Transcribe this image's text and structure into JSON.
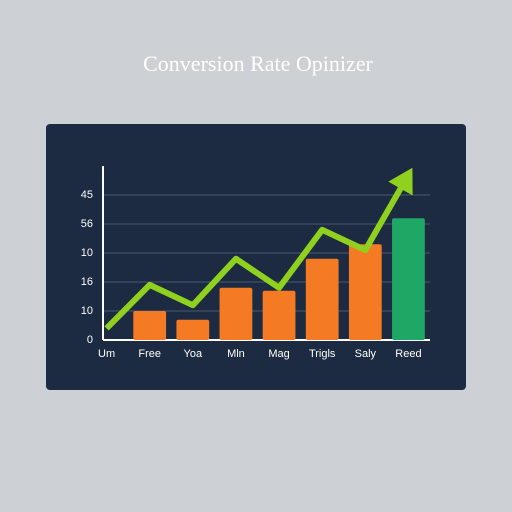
{
  "chart_data": {
    "type": "bar",
    "title": "Conversion Rate Opinizer",
    "categories": [
      "Um",
      "Free",
      "Yoa",
      "Mln",
      "Mag",
      "Trigls",
      "Saly",
      "Reed"
    ],
    "series": [
      {
        "type": "bar",
        "colors": [
          "#f47a24",
          "#f47a24",
          "#f47a24",
          "#f47a24",
          "#f47a24",
          "#f47a24",
          "#f47a24",
          "#1fa865"
        ],
        "values": [
          null,
          1.0,
          0.7,
          1.8,
          1.7,
          2.8,
          3.3,
          4.2
        ]
      },
      {
        "type": "line",
        "color": "#8fd11e",
        "values": [
          0.4,
          1.9,
          1.2,
          2.8,
          1.8,
          3.8,
          3.1,
          5.7
        ]
      }
    ],
    "ylim": [
      0,
      6
    ],
    "yticks": [
      {
        "value": 0,
        "label": "0"
      },
      {
        "value": 1,
        "label": "10"
      },
      {
        "value": 2,
        "label": "16"
      },
      {
        "value": 3,
        "label": "10"
      },
      {
        "value": 4,
        "label": "56"
      },
      {
        "value": 5,
        "label": "45"
      }
    ],
    "grid": true
  }
}
